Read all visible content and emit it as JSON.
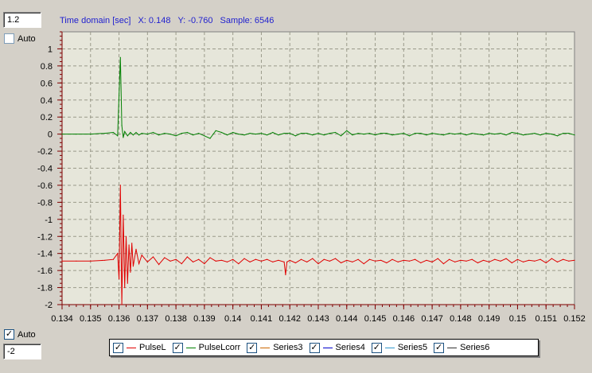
{
  "controls": {
    "ymax_value": "1.2",
    "ymin_value": "-2",
    "auto_top": {
      "label": "Auto",
      "checked": false
    },
    "auto_bottom": {
      "label": "Auto",
      "checked": true
    }
  },
  "status": {
    "axis_label": "Time domain [sec]",
    "x_readout": "X: 0.148",
    "y_readout": "Y: -0.760",
    "sample_readout": "Sample: 6546"
  },
  "chart_data": {
    "type": "line",
    "title": "",
    "xlabel": "Time domain [sec]",
    "ylabel": "",
    "xlim": [
      0.134,
      0.152
    ],
    "ylim": [
      -2,
      1.2
    ],
    "x_ticks": [
      "0.134",
      "0.135",
      "0.136",
      "0.137",
      "0.138",
      "0.139",
      "0.14",
      "0.141",
      "0.142",
      "0.143",
      "0.144",
      "0.145",
      "0.146",
      "0.147",
      "0.148",
      "0.149",
      "0.15",
      "0.151",
      "0.152"
    ],
    "y_ticks": [
      "1",
      "0.8",
      "0.6",
      "0.4",
      "0.2",
      "0",
      "-0.2",
      "-0.4",
      "-0.6",
      "-0.8",
      "-1",
      "-1.2",
      "-1.4",
      "-1.6",
      "-1.8",
      "-2"
    ],
    "grid": true,
    "series": [
      {
        "name": "PulseL",
        "color": "#e00000",
        "x": [
          0.134,
          0.1345,
          0.135,
          0.1355,
          0.1358,
          0.13595,
          0.136,
          0.13605,
          0.1361,
          0.13615,
          0.1362,
          0.13625,
          0.1363,
          0.13635,
          0.1364,
          0.13645,
          0.1365,
          0.1366,
          0.1367,
          0.1368,
          0.137,
          0.1372,
          0.1374,
          0.1376,
          0.1378,
          0.138,
          0.1382,
          0.1384,
          0.1386,
          0.1388,
          0.139,
          0.1392,
          0.1394,
          0.1396,
          0.1398,
          0.14,
          0.1402,
          0.1404,
          0.1406,
          0.1408,
          0.141,
          0.1412,
          0.1414,
          0.1416,
          0.1418,
          0.14185,
          0.1419,
          0.142,
          0.1422,
          0.1424,
          0.1426,
          0.1428,
          0.143,
          0.1432,
          0.1434,
          0.1436,
          0.1438,
          0.144,
          0.1442,
          0.1444,
          0.1446,
          0.1448,
          0.145,
          0.1452,
          0.1454,
          0.1456,
          0.1458,
          0.146,
          0.1462,
          0.1464,
          0.1466,
          0.1468,
          0.147,
          0.1472,
          0.1474,
          0.1476,
          0.1478,
          0.148,
          0.1482,
          0.1484,
          0.1486,
          0.1488,
          0.149,
          0.1492,
          0.1494,
          0.1496,
          0.1498,
          0.15,
          0.1502,
          0.1504,
          0.1506,
          0.1508,
          0.151,
          0.1512,
          0.1514,
          0.1516,
          0.1518,
          0.152
        ],
        "values": [
          -1.49,
          -1.49,
          -1.49,
          -1.48,
          -1.47,
          -1.4,
          -1.7,
          -0.6,
          -2.0,
          -0.95,
          -1.8,
          -1.2,
          -1.75,
          -1.3,
          -1.62,
          -1.28,
          -1.55,
          -1.35,
          -1.52,
          -1.42,
          -1.5,
          -1.44,
          -1.53,
          -1.45,
          -1.49,
          -1.47,
          -1.52,
          -1.44,
          -1.5,
          -1.47,
          -1.52,
          -1.45,
          -1.49,
          -1.48,
          -1.5,
          -1.47,
          -1.52,
          -1.46,
          -1.5,
          -1.47,
          -1.49,
          -1.47,
          -1.5,
          -1.48,
          -1.5,
          -1.65,
          -1.5,
          -1.48,
          -1.51,
          -1.47,
          -1.5,
          -1.46,
          -1.52,
          -1.47,
          -1.49,
          -1.46,
          -1.51,
          -1.48,
          -1.5,
          -1.47,
          -1.52,
          -1.47,
          -1.49,
          -1.48,
          -1.51,
          -1.47,
          -1.5,
          -1.48,
          -1.49,
          -1.47,
          -1.51,
          -1.48,
          -1.5,
          -1.46,
          -1.52,
          -1.47,
          -1.5,
          -1.48,
          -1.49,
          -1.47,
          -1.51,
          -1.48,
          -1.5,
          -1.47,
          -1.49,
          -1.46,
          -1.51,
          -1.47,
          -1.5,
          -1.48,
          -1.49,
          -1.47,
          -1.51,
          -1.46,
          -1.5,
          -1.47,
          -1.49,
          -1.48
        ]
      },
      {
        "name": "PulseLcorr",
        "color": "#008000",
        "x": [
          0.134,
          0.1345,
          0.135,
          0.1355,
          0.1358,
          0.13595,
          0.136,
          0.13605,
          0.1361,
          0.13615,
          0.1362,
          0.1363,
          0.1364,
          0.1365,
          0.1366,
          0.1367,
          0.1368,
          0.137,
          0.1372,
          0.1374,
          0.1376,
          0.1378,
          0.138,
          0.1382,
          0.1384,
          0.1386,
          0.1388,
          0.139,
          0.1392,
          0.1394,
          0.1396,
          0.1398,
          0.14,
          0.1402,
          0.1404,
          0.1406,
          0.1408,
          0.141,
          0.1412,
          0.1414,
          0.1416,
          0.1418,
          0.142,
          0.1422,
          0.1424,
          0.1426,
          0.1428,
          0.143,
          0.1432,
          0.1434,
          0.1436,
          0.1438,
          0.144,
          0.1442,
          0.1444,
          0.1446,
          0.1448,
          0.145,
          0.1452,
          0.1454,
          0.1456,
          0.1458,
          0.146,
          0.1462,
          0.1464,
          0.1466,
          0.1468,
          0.147,
          0.1472,
          0.1474,
          0.1476,
          0.1478,
          0.148,
          0.1482,
          0.1484,
          0.1486,
          0.1488,
          0.149,
          0.1492,
          0.1494,
          0.1496,
          0.1498,
          0.15,
          0.1502,
          0.1504,
          0.1506,
          0.1508,
          0.151,
          0.1512,
          0.1514,
          0.1516,
          0.1518,
          0.152
        ],
        "values": [
          0,
          0,
          0,
          0.01,
          0.02,
          -0.02,
          0.45,
          0.9,
          0.1,
          -0.04,
          0.03,
          -0.02,
          0.02,
          -0.01,
          0.02,
          -0.01,
          0.01,
          0,
          0.02,
          -0.01,
          0.01,
          0,
          -0.02,
          0.01,
          0.02,
          -0.01,
          0.01,
          -0.02,
          -0.05,
          0.04,
          0.02,
          -0.01,
          0.02,
          0,
          -0.01,
          0.01,
          0,
          0.01,
          -0.01,
          0.02,
          -0.01,
          0.01,
          0.01,
          -0.02,
          0.01,
          0.01,
          -0.01,
          0.01,
          -0.01,
          0.01,
          0.02,
          -0.02,
          0.04,
          -0.01,
          0.01,
          0,
          0.01,
          -0.01,
          0.01,
          0.01,
          -0.01,
          0,
          0.01,
          -0.02,
          0.01,
          0.01,
          -0.01,
          0.01,
          0,
          -0.01,
          0.01,
          0,
          0.01,
          -0.01,
          0.01,
          0,
          -0.01,
          0.01,
          0,
          0.01,
          -0.01,
          0.02,
          0.01,
          -0.01,
          0,
          0.01,
          -0.01,
          0.01,
          0,
          -0.02,
          0.01,
          0.01,
          -0.01
        ]
      },
      {
        "name": "Series3",
        "color": "#cc6600",
        "x": [],
        "values": []
      },
      {
        "name": "Series4",
        "color": "#0000cc",
        "x": [],
        "values": []
      },
      {
        "name": "Series5",
        "color": "#3399cc",
        "x": [],
        "values": []
      },
      {
        "name": "Series6",
        "color": "#333333",
        "x": [],
        "values": []
      }
    ]
  },
  "legend": {
    "items": [
      {
        "label": "PulseL",
        "color": "#e00000",
        "checked": true
      },
      {
        "label": "PulseLcorr",
        "color": "#008000",
        "checked": true
      },
      {
        "label": "Series3",
        "color": "#cc6600",
        "checked": true
      },
      {
        "label": "Series4",
        "color": "#0000cc",
        "checked": true
      },
      {
        "label": "Series5",
        "color": "#3399cc",
        "checked": true
      },
      {
        "label": "Series6",
        "color": "#333333",
        "checked": true
      }
    ]
  }
}
